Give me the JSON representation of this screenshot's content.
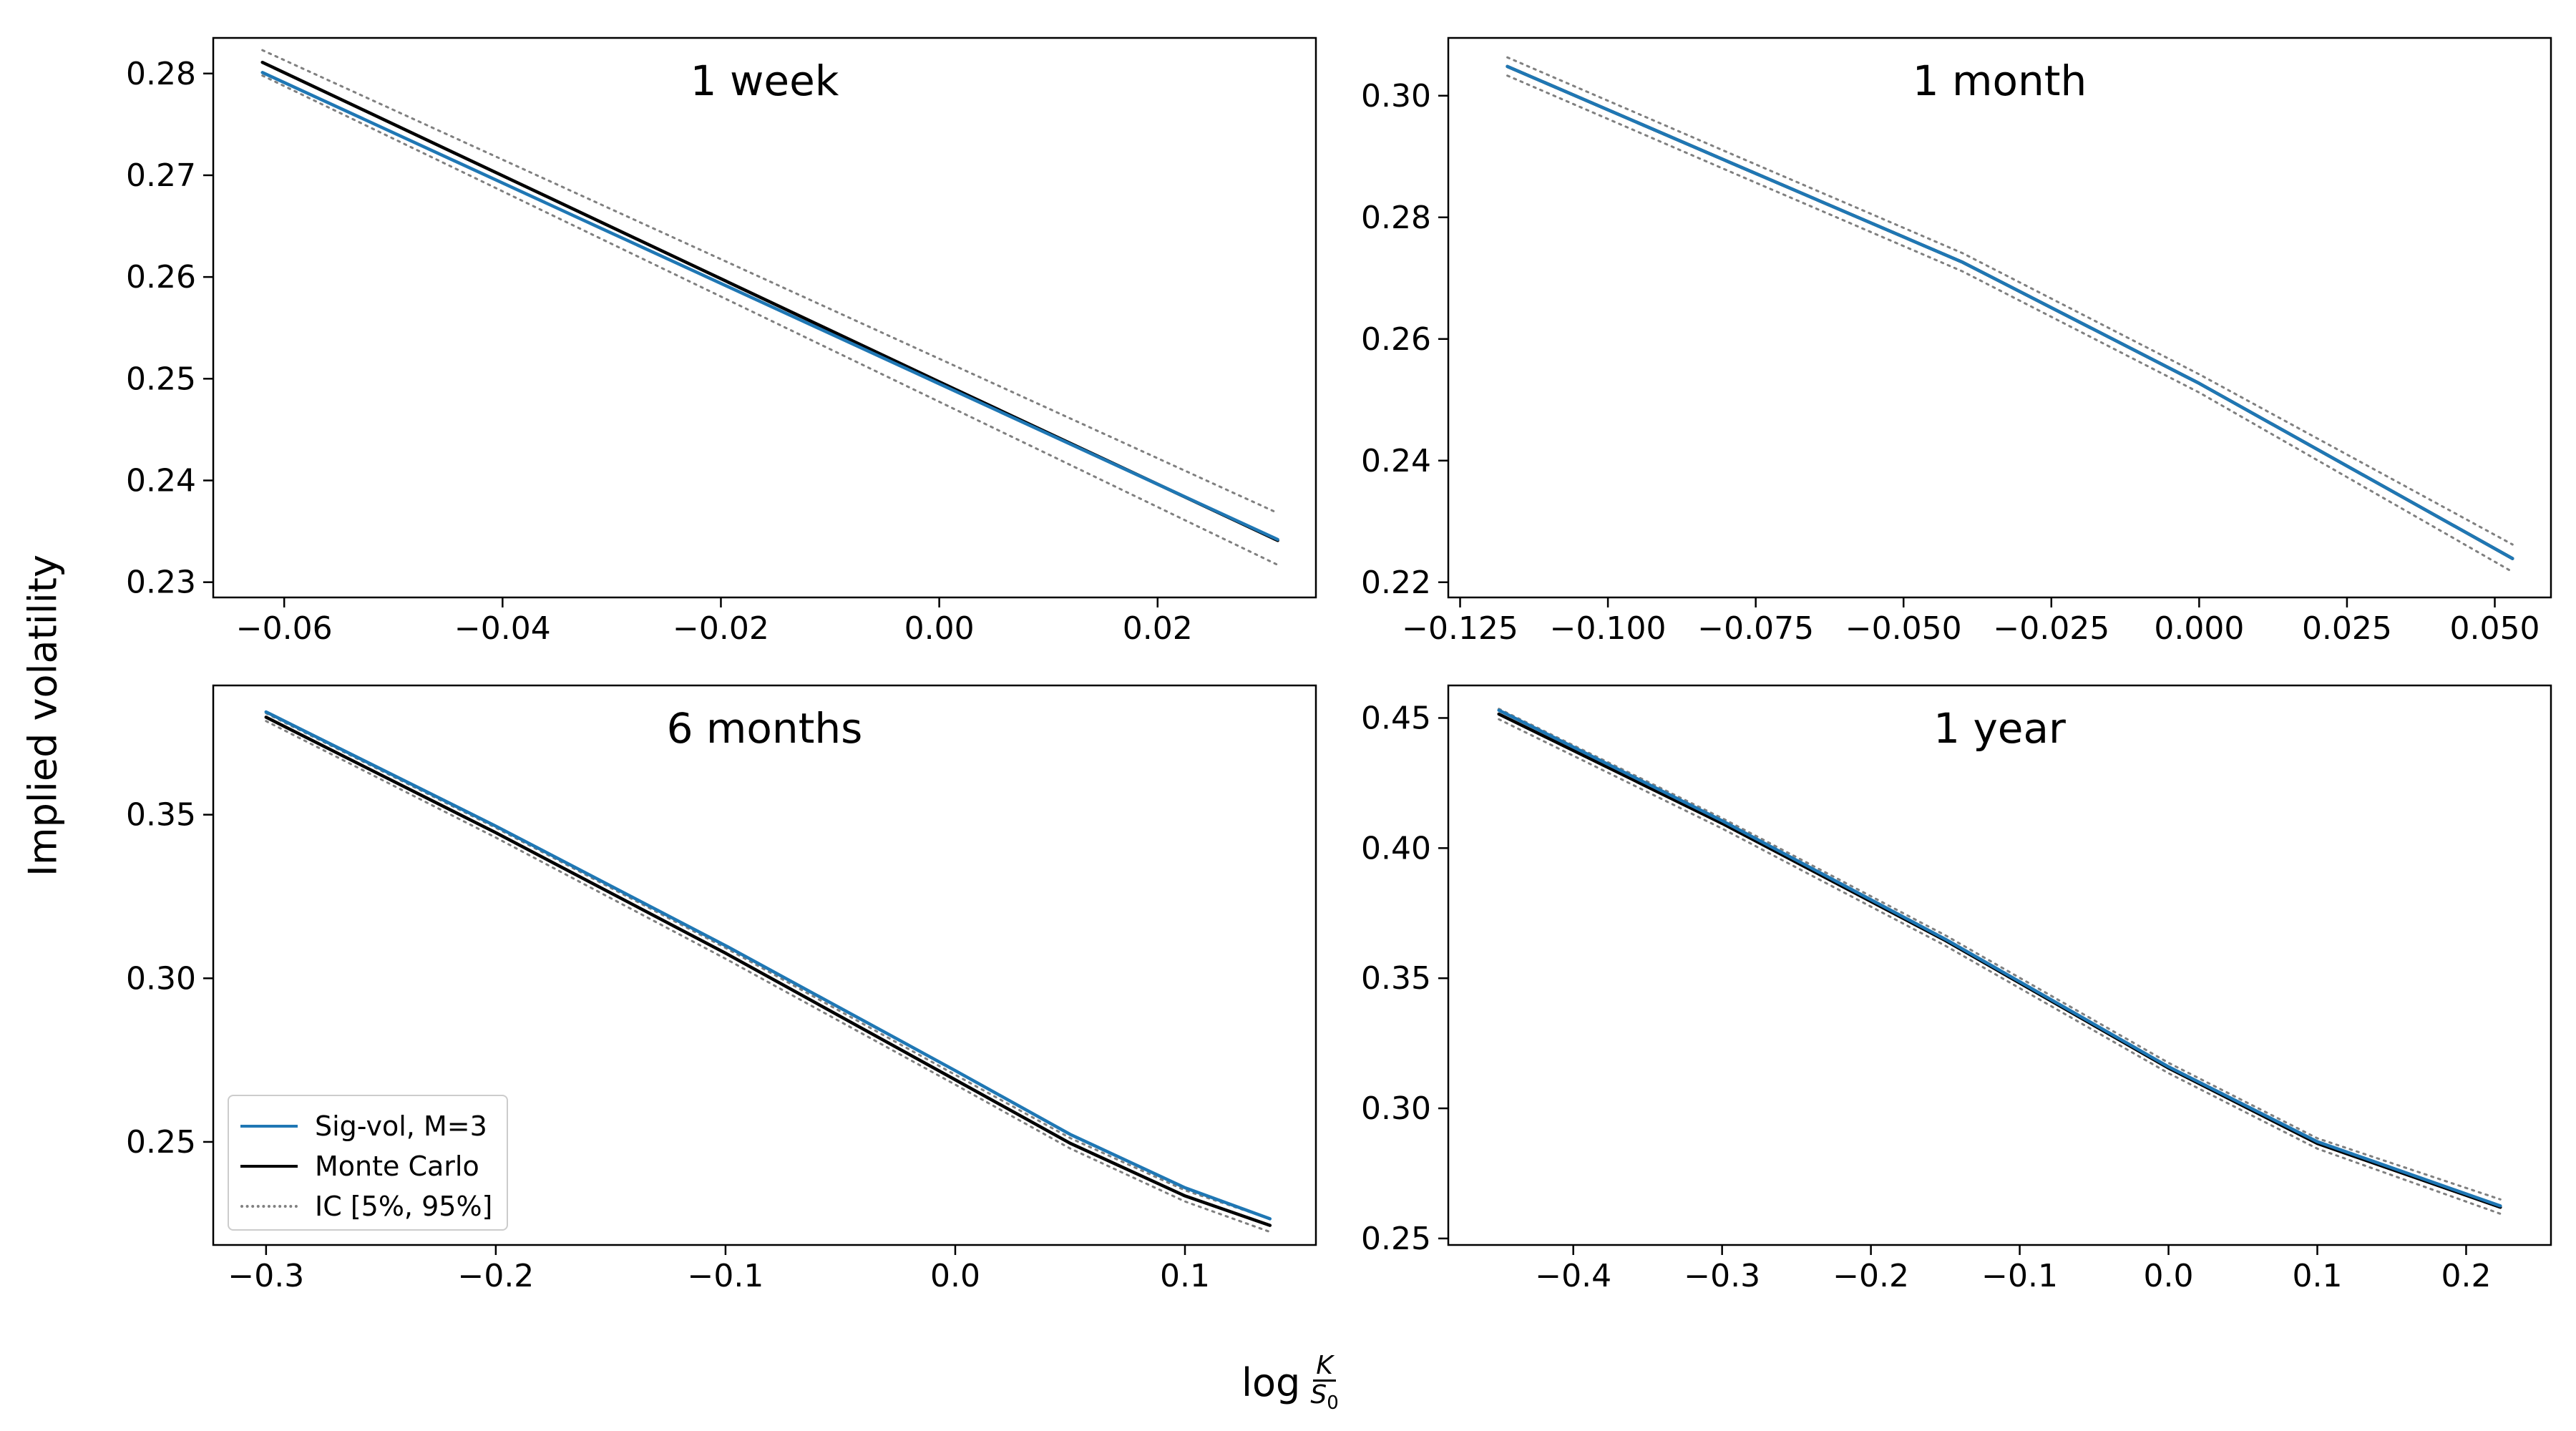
{
  "figure": {
    "ylabel": "Implied volatility",
    "xlabel_prefix": "log",
    "xlabel_num": "K",
    "xlabel_den": "S",
    "xlabel_den_sub": "0"
  },
  "legend": {
    "items": [
      {
        "label": "Sig-vol, M=3",
        "color": "#1f77b4",
        "style": "solid"
      },
      {
        "label": "Monte Carlo",
        "color": "#000000",
        "style": "solid"
      },
      {
        "label": "IC [5%, 95%]",
        "color": "#808080",
        "style": "dotted"
      }
    ]
  },
  "chart_data": [
    {
      "type": "line",
      "title": "1 week",
      "xlim": [
        -0.0665,
        0.0345
      ],
      "ylim": [
        0.2285,
        0.2835
      ],
      "xticks": [
        -0.06,
        -0.04,
        -0.02,
        0.0,
        0.02
      ],
      "xtick_labels": [
        "−0.06",
        "−0.04",
        "−0.02",
        "0.00",
        "0.02"
      ],
      "yticks": [
        0.23,
        0.24,
        0.25,
        0.26,
        0.27,
        0.28
      ],
      "ytick_labels": [
        "0.23",
        "0.24",
        "0.25",
        "0.26",
        "0.27",
        "0.28"
      ],
      "series": [
        {
          "name": "IC upper",
          "x": [
            -0.062,
            0.031
          ],
          "y": [
            0.2823,
            0.2368
          ]
        },
        {
          "name": "IC lower",
          "x": [
            -0.062,
            0.031
          ],
          "y": [
            0.2798,
            0.2317
          ]
        },
        {
          "name": "Monte Carlo",
          "x": [
            -0.062,
            -0.031,
            0.0,
            0.031
          ],
          "y": [
            0.2811,
            0.2654,
            0.2497,
            0.2341
          ]
        },
        {
          "name": "Sig-vol, M=3",
          "x": [
            -0.062,
            -0.031,
            0.0,
            0.031
          ],
          "y": [
            0.2801,
            0.2648,
            0.2495,
            0.2342
          ]
        }
      ]
    },
    {
      "type": "line",
      "title": "1 month",
      "xlim": [
        -0.127,
        0.0595
      ],
      "ylim": [
        0.2175,
        0.3095
      ],
      "xticks": [
        -0.125,
        -0.1,
        -0.075,
        -0.05,
        -0.025,
        0.0,
        0.025,
        0.05
      ],
      "xtick_labels": [
        "−0.125",
        "−0.100",
        "−0.075",
        "−0.050",
        "−0.025",
        "0.000",
        "0.025",
        "0.050"
      ],
      "yticks": [
        0.22,
        0.24,
        0.26,
        0.28,
        0.3
      ],
      "ytick_labels": [
        "0.22",
        "0.24",
        "0.26",
        "0.28",
        "0.30"
      ],
      "series": [
        {
          "name": "IC upper",
          "x": [
            -0.117,
            -0.08,
            -0.04,
            0.0,
            0.053
          ],
          "y": [
            0.3063,
            0.2908,
            0.2741,
            0.2542,
            0.2262
          ]
        },
        {
          "name": "IC lower",
          "x": [
            -0.117,
            -0.08,
            -0.04,
            0.0,
            0.053
          ],
          "y": [
            0.3033,
            0.2878,
            0.2711,
            0.2512,
            0.2217
          ]
        },
        {
          "name": "Monte Carlo",
          "x": [
            -0.117,
            -0.08,
            -0.04,
            0.0,
            0.053
          ],
          "y": [
            0.3048,
            0.2893,
            0.2726,
            0.2527,
            0.2239
          ]
        },
        {
          "name": "Sig-vol, M=3",
          "x": [
            -0.117,
            -0.08,
            -0.04,
            0.0,
            0.053
          ],
          "y": [
            0.3048,
            0.2893,
            0.2726,
            0.2527,
            0.2239
          ]
        }
      ]
    },
    {
      "type": "line",
      "title": "6 months",
      "xlim": [
        -0.323,
        0.157
      ],
      "ylim": [
        0.2185,
        0.3895
      ],
      "xticks": [
        -0.3,
        -0.2,
        -0.1,
        0.0,
        0.1
      ],
      "xtick_labels": [
        "−0.3",
        "−0.2",
        "−0.1",
        "0.0",
        "0.1"
      ],
      "yticks": [
        0.25,
        0.3,
        0.35
      ],
      "ytick_labels": [
        "0.25",
        "0.30",
        "0.35"
      ],
      "series": [
        {
          "name": "IC upper",
          "x": [
            -0.3,
            -0.2,
            -0.1,
            0.0,
            0.05,
            0.1,
            0.137
          ],
          "y": [
            0.381,
            0.346,
            0.3093,
            0.2705,
            0.2512,
            0.2352,
            0.2265
          ]
        },
        {
          "name": "IC lower",
          "x": [
            -0.3,
            -0.2,
            -0.1,
            0.0,
            0.05,
            0.1,
            0.137
          ],
          "y": [
            0.3786,
            0.343,
            0.306,
            0.2675,
            0.248,
            0.2318,
            0.2225
          ]
        },
        {
          "name": "Monte Carlo",
          "x": [
            -0.3,
            -0.2,
            -0.1,
            0.0,
            0.05,
            0.1,
            0.137
          ],
          "y": [
            0.3798,
            0.3445,
            0.3077,
            0.269,
            0.2496,
            0.2335,
            0.2245
          ]
        },
        {
          "name": "Sig-vol, M=3",
          "x": [
            -0.3,
            -0.2,
            -0.1,
            0.0,
            0.05,
            0.1,
            0.137
          ],
          "y": [
            0.3814,
            0.3465,
            0.31,
            0.2718,
            0.2523,
            0.236,
            0.2265
          ]
        }
      ]
    },
    {
      "type": "line",
      "title": "1 year",
      "xlim": [
        -0.484,
        0.257
      ],
      "ylim": [
        0.2475,
        0.4625
      ],
      "xticks": [
        -0.4,
        -0.3,
        -0.2,
        -0.1,
        0.0,
        0.1,
        0.2
      ],
      "xtick_labels": [
        "−0.4",
        "−0.3",
        "−0.2",
        "−0.1",
        "0.0",
        "0.1",
        "0.2"
      ],
      "yticks": [
        0.25,
        0.3,
        0.35,
        0.4,
        0.45
      ],
      "ytick_labels": [
        "0.25",
        "0.30",
        "0.35",
        "0.40",
        "0.45"
      ],
      "series": [
        {
          "name": "IC upper",
          "x": [
            -0.45,
            -0.3,
            -0.15,
            0.0,
            0.1,
            0.223
          ],
          "y": [
            0.4535,
            0.4115,
            0.3665,
            0.3175,
            0.2885,
            0.265
          ]
        },
        {
          "name": "IC lower",
          "x": [
            -0.45,
            -0.3,
            -0.15,
            0.0,
            0.1,
            0.223
          ],
          "y": [
            0.4495,
            0.4075,
            0.3625,
            0.3135,
            0.2845,
            0.2595
          ]
        },
        {
          "name": "Monte Carlo",
          "x": [
            -0.45,
            -0.3,
            -0.15,
            0.0,
            0.1,
            0.223
          ],
          "y": [
            0.4515,
            0.4095,
            0.3645,
            0.3155,
            0.2865,
            0.262
          ]
        },
        {
          "name": "Sig-vol, M=3",
          "x": [
            -0.45,
            -0.3,
            -0.15,
            0.0,
            0.1,
            0.223
          ],
          "y": [
            0.453,
            0.4105,
            0.365,
            0.316,
            0.2872,
            0.2625
          ]
        }
      ]
    }
  ]
}
